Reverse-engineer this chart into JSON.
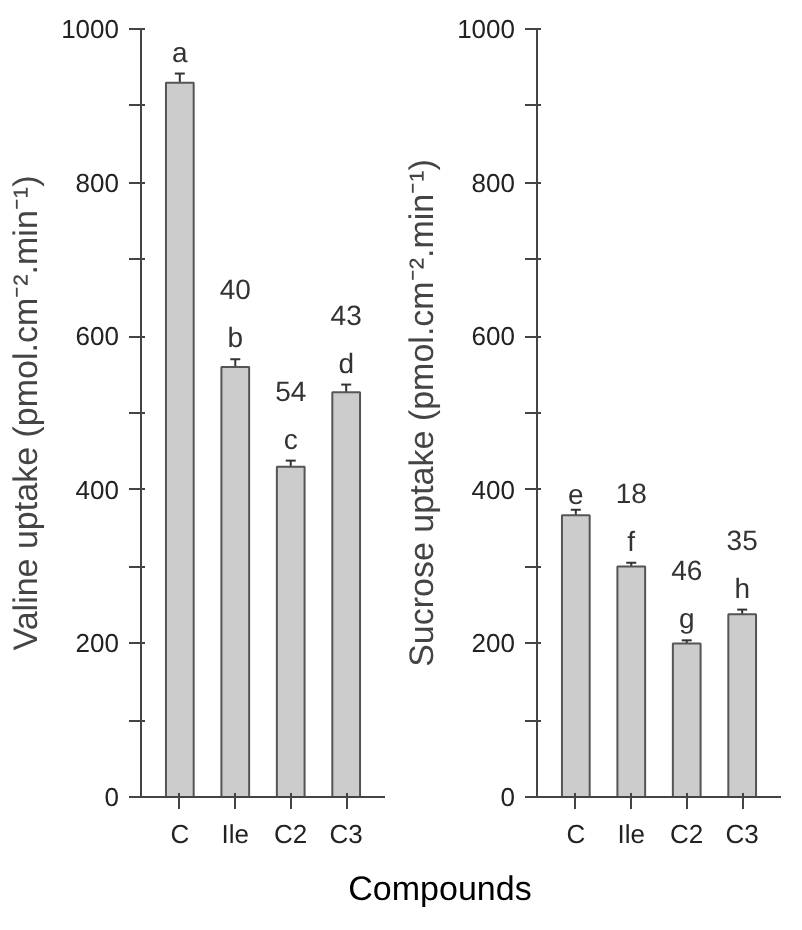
{
  "chart_data": [
    {
      "type": "bar",
      "xlabel": "Compounds",
      "ylabel": "Valine uptake (pmol.cm⁻².min⁻¹)",
      "categories": [
        "C",
        "Ile",
        "C2",
        "C3"
      ],
      "values": [
        930,
        560,
        430,
        527
      ],
      "errors": [
        12,
        10,
        8,
        10
      ],
      "annotations": [
        "a",
        "40\nb",
        "54\nc",
        "43\nd"
      ],
      "color": "#cccccc",
      "ylim": [
        0,
        1000
      ],
      "yticks": [
        0,
        {
          "value": 100,
          "label": null
        },
        200,
        {
          "value": 300,
          "label": null
        },
        400,
        {
          "value": 500,
          "label": null
        },
        600,
        {
          "value": 700,
          "label": null
        },
        800,
        {
          "value": 900,
          "label": null
        },
        1000
      ],
      "grid": false
    },
    {
      "type": "bar",
      "ylabel": "Sucrose uptake (pmol.cm⁻².min⁻¹)",
      "categories": [
        "C",
        "Ile",
        "C2",
        "C3"
      ],
      "values": [
        367,
        300,
        200,
        238
      ],
      "errors": [
        7,
        5,
        4,
        6
      ],
      "annotations": [
        "e",
        "18\nf",
        "46\ng",
        "35\nh"
      ],
      "color": "#cccccc",
      "ylim": [
        0,
        1000
      ],
      "yticks": [
        0,
        {
          "value": 100,
          "label": null
        },
        200,
        {
          "value": 300,
          "label": null
        },
        400,
        {
          "value": 500,
          "label": null
        },
        600,
        {
          "value": 700,
          "label": null
        },
        800,
        {
          "value": 900,
          "label": null
        },
        1000
      ],
      "grid": false
    }
  ]
}
